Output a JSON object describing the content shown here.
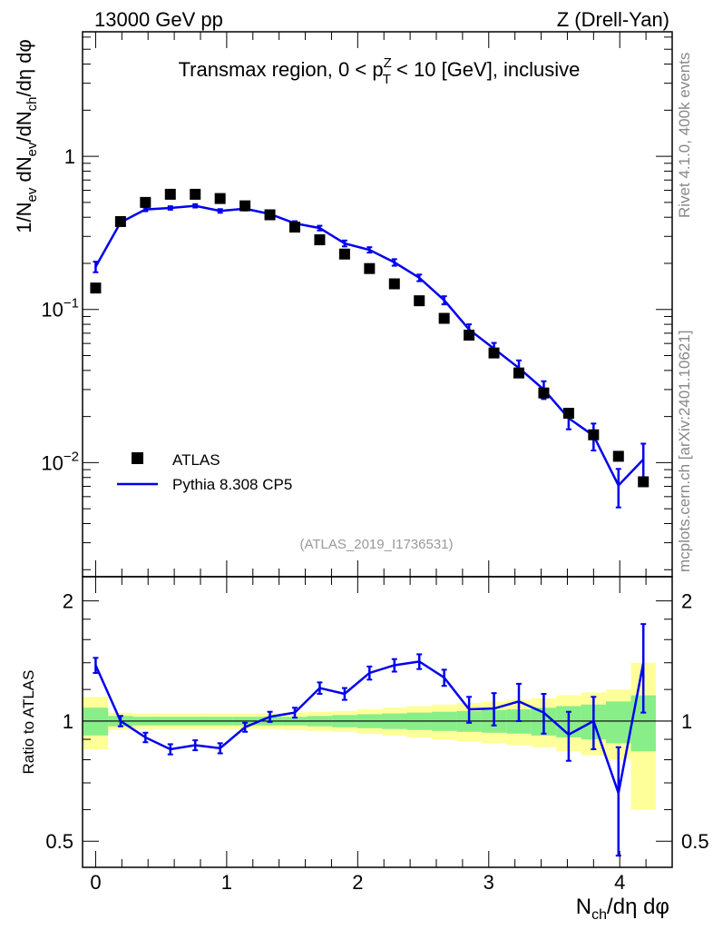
{
  "header": {
    "left": "13000 GeV pp",
    "right": "Z (Drell-Yan)"
  },
  "side_labels": {
    "rivet": "Rivet 4.1.0,  400k events",
    "mcplots": "mcplots.cern.ch [arXiv:2401.10621]"
  },
  "chart_data": [
    {
      "type": "scatter",
      "panel": "main",
      "title": "Transmax region, 0 < p_T^Z < 10 [GeV], inclusive",
      "title_parts": {
        "pre": "Transmax region, 0 < p",
        "sup": "Z",
        "sub": "T",
        "post": " < 10 [GeV], inclusive"
      },
      "analysis_tag": "(ATLAS_2019_I1736531)",
      "ylabel": "1/N_ev dN_ev/dN_ch/dη dφ",
      "ylabel_parts": {
        "a": "1/N",
        "a_sub": "ev",
        "b": " dN",
        "b_sub": "ev",
        "c": "/dN",
        "c_sub": "ch",
        "d": "/dη dφ"
      },
      "xlim": [
        -0.1,
        4.4
      ],
      "ylim": [
        0.0018,
        6.5
      ],
      "yscale": "log",
      "yticks": [
        {
          "value": 1,
          "label": "1"
        },
        {
          "value": 0.1,
          "label": "10",
          "exp": "−1"
        },
        {
          "value": 0.01,
          "label": "10",
          "exp": "−2"
        }
      ],
      "legend": [
        {
          "name": "ATLAS",
          "marker": "square",
          "color": "#000000"
        },
        {
          "name": "Pythia 8.308 CP5",
          "marker": "line",
          "color": "#0000ee"
        }
      ],
      "legend_position": "lower-left",
      "x": [
        0.0,
        0.19,
        0.38,
        0.57,
        0.76,
        0.95,
        1.14,
        1.33,
        1.52,
        1.71,
        1.9,
        2.09,
        2.28,
        2.47,
        2.66,
        2.85,
        3.04,
        3.23,
        3.42,
        3.61,
        3.8,
        3.99,
        4.18
      ],
      "series": [
        {
          "name": "ATLAS",
          "values": [
            0.138,
            0.375,
            0.5,
            0.565,
            0.565,
            0.53,
            0.475,
            0.415,
            0.345,
            0.285,
            0.23,
            0.185,
            0.147,
            0.114,
            0.0875,
            0.068,
            0.052,
            0.0385,
            0.0285,
            0.021,
            0.0152,
            0.011,
            0.0075
          ]
        },
        {
          "name": "Pythia 8.308 CP5",
          "values": [
            0.19,
            0.37,
            0.45,
            0.46,
            0.475,
            0.44,
            0.455,
            0.42,
            0.365,
            0.34,
            0.27,
            0.245,
            0.203,
            0.161,
            0.115,
            0.074,
            0.0555,
            0.0415,
            0.03,
            0.0195,
            0.015,
            0.0071,
            0.0105
          ],
          "errors": [
            0.015,
            0.015,
            0.012,
            0.012,
            0.012,
            0.012,
            0.012,
            0.012,
            0.012,
            0.012,
            0.012,
            0.01,
            0.01,
            0.008,
            0.007,
            0.006,
            0.005,
            0.005,
            0.004,
            0.003,
            0.003,
            0.002,
            0.0028
          ]
        }
      ]
    },
    {
      "type": "line",
      "panel": "ratio",
      "ylabel": "Ratio to ATLAS",
      "xlabel": "N_ch/dη dφ",
      "xlabel_parts": {
        "a": "N",
        "a_sub": "ch",
        "b": "/dη dφ"
      },
      "xlim": [
        -0.1,
        4.4
      ],
      "ylim": [
        0.43,
        2.3
      ],
      "yscale": "log",
      "xticks": [
        {
          "value": 0,
          "label": "0"
        },
        {
          "value": 1,
          "label": "1"
        },
        {
          "value": 2,
          "label": "2"
        },
        {
          "value": 3,
          "label": "3"
        },
        {
          "value": 4,
          "label": "4"
        }
      ],
      "yticks": [
        {
          "value": 0.5,
          "label": "0.5"
        },
        {
          "value": 1,
          "label": "1"
        },
        {
          "value": 2,
          "label": "2"
        }
      ],
      "x": [
        0.0,
        0.19,
        0.38,
        0.57,
        0.76,
        0.95,
        1.14,
        1.33,
        1.52,
        1.71,
        1.9,
        2.09,
        2.28,
        2.47,
        2.66,
        2.85,
        3.04,
        3.23,
        3.42,
        3.61,
        3.8,
        3.99,
        4.18
      ],
      "bands": {
        "green": [
          0.08,
          0.03,
          0.025,
          0.025,
          0.025,
          0.025,
          0.025,
          0.025,
          0.025,
          0.03,
          0.035,
          0.04,
          0.045,
          0.05,
          0.055,
          0.06,
          0.065,
          0.07,
          0.08,
          0.09,
          0.1,
          0.12,
          0.16
        ],
        "yellow": [
          0.15,
          0.05,
          0.045,
          0.045,
          0.045,
          0.045,
          0.045,
          0.045,
          0.05,
          0.055,
          0.06,
          0.07,
          0.08,
          0.09,
          0.1,
          0.11,
          0.12,
          0.13,
          0.14,
          0.16,
          0.18,
          0.2,
          0.4
        ]
      },
      "series": [
        {
          "name": "Pythia 8.308 CP5",
          "values": [
            1.38,
            1.0,
            0.91,
            0.85,
            0.87,
            0.855,
            0.965,
            1.025,
            1.05,
            1.21,
            1.17,
            1.32,
            1.38,
            1.41,
            1.285,
            1.07,
            1.075,
            1.12,
            1.05,
            0.925,
            1.0,
            0.66,
            1.4
          ],
          "errors": [
            0.06,
            0.03,
            0.025,
            0.025,
            0.025,
            0.025,
            0.025,
            0.03,
            0.03,
            0.04,
            0.04,
            0.05,
            0.05,
            0.06,
            0.06,
            0.08,
            0.1,
            0.12,
            0.12,
            0.13,
            0.15,
            0.2,
            0.35
          ]
        }
      ],
      "reference_line": 1
    }
  ]
}
